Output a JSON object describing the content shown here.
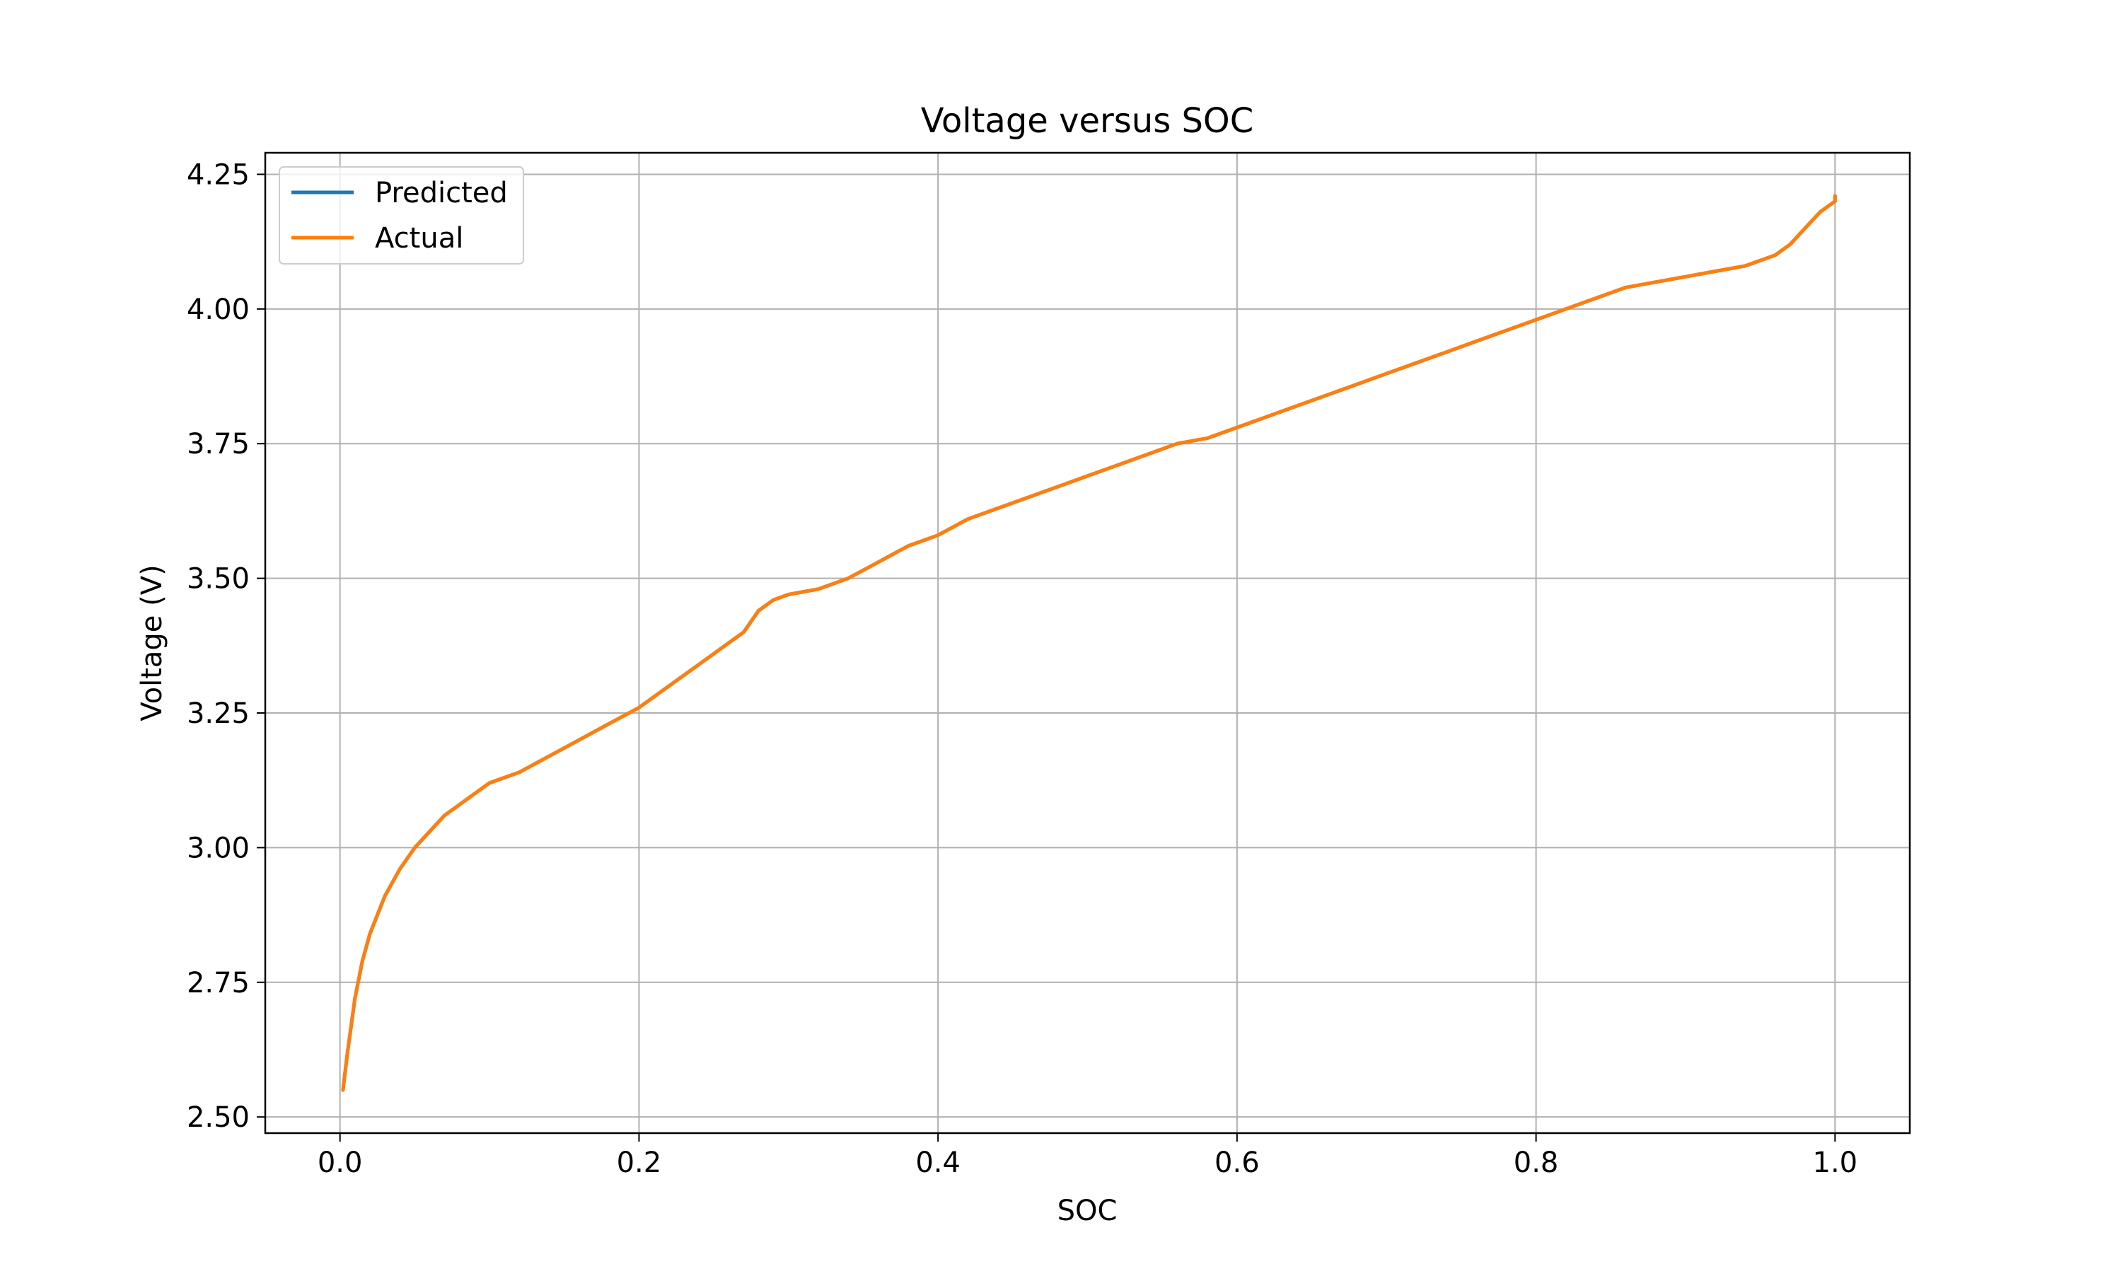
{
  "chart_data": {
    "type": "line",
    "title": "Voltage versus SOC",
    "xlabel": "SOC",
    "ylabel": "Voltage (V)",
    "xlim": [
      -0.05,
      1.05
    ],
    "ylim": [
      2.47,
      4.29
    ],
    "xticks": [
      0.0,
      0.2,
      0.4,
      0.6,
      0.8,
      1.0
    ],
    "xtick_labels": [
      "0.0",
      "0.2",
      "0.4",
      "0.6",
      "0.8",
      "1.0"
    ],
    "yticks": [
      2.5,
      2.75,
      3.0,
      3.25,
      3.5,
      3.75,
      4.0,
      4.25
    ],
    "ytick_labels": [
      "2.50",
      "2.75",
      "3.00",
      "3.25",
      "3.50",
      "3.75",
      "4.00",
      "4.25"
    ],
    "grid": true,
    "legend_position": "upper left",
    "series": [
      {
        "name": "Predicted",
        "color": "#1f77b4",
        "x": [
          0.002,
          0.005,
          0.01,
          0.015,
          0.02,
          0.03,
          0.04,
          0.05,
          0.06,
          0.07,
          0.08,
          0.09,
          0.1,
          0.11,
          0.12,
          0.14,
          0.16,
          0.18,
          0.2,
          0.22,
          0.24,
          0.26,
          0.27,
          0.28,
          0.29,
          0.3,
          0.32,
          0.34,
          0.36,
          0.38,
          0.4,
          0.42,
          0.44,
          0.46,
          0.48,
          0.5,
          0.52,
          0.54,
          0.56,
          0.58,
          0.6,
          0.62,
          0.64,
          0.66,
          0.68,
          0.7,
          0.72,
          0.74,
          0.76,
          0.78,
          0.8,
          0.82,
          0.84,
          0.86,
          0.88,
          0.9,
          0.92,
          0.94,
          0.96,
          0.97,
          0.98,
          0.99,
          1.0,
          1.0
        ],
        "y": [
          2.55,
          2.62,
          2.72,
          2.79,
          2.84,
          2.91,
          2.96,
          3.0,
          3.03,
          3.06,
          3.08,
          3.1,
          3.12,
          3.13,
          3.14,
          3.17,
          3.2,
          3.23,
          3.26,
          3.3,
          3.34,
          3.38,
          3.4,
          3.44,
          3.46,
          3.47,
          3.48,
          3.5,
          3.53,
          3.56,
          3.58,
          3.61,
          3.63,
          3.65,
          3.67,
          3.69,
          3.71,
          3.73,
          3.75,
          3.76,
          3.78,
          3.8,
          3.82,
          3.84,
          3.86,
          3.88,
          3.9,
          3.92,
          3.94,
          3.96,
          3.98,
          4.0,
          4.02,
          4.04,
          4.05,
          4.06,
          4.07,
          4.08,
          4.1,
          4.12,
          4.15,
          4.18,
          4.2,
          4.21
        ]
      },
      {
        "name": "Actual",
        "color": "#ff7f0e",
        "x": [
          0.002,
          0.005,
          0.01,
          0.015,
          0.02,
          0.03,
          0.04,
          0.05,
          0.06,
          0.07,
          0.08,
          0.09,
          0.1,
          0.11,
          0.12,
          0.14,
          0.16,
          0.18,
          0.2,
          0.22,
          0.24,
          0.26,
          0.27,
          0.28,
          0.29,
          0.3,
          0.32,
          0.34,
          0.36,
          0.38,
          0.4,
          0.42,
          0.44,
          0.46,
          0.48,
          0.5,
          0.52,
          0.54,
          0.56,
          0.58,
          0.6,
          0.62,
          0.64,
          0.66,
          0.68,
          0.7,
          0.72,
          0.74,
          0.76,
          0.78,
          0.8,
          0.82,
          0.84,
          0.86,
          0.88,
          0.9,
          0.92,
          0.94,
          0.96,
          0.97,
          0.98,
          0.99,
          1.0,
          1.0
        ],
        "y": [
          2.55,
          2.62,
          2.72,
          2.79,
          2.84,
          2.91,
          2.96,
          3.0,
          3.03,
          3.06,
          3.08,
          3.1,
          3.12,
          3.13,
          3.14,
          3.17,
          3.2,
          3.23,
          3.26,
          3.3,
          3.34,
          3.38,
          3.4,
          3.44,
          3.46,
          3.47,
          3.48,
          3.5,
          3.53,
          3.56,
          3.58,
          3.61,
          3.63,
          3.65,
          3.67,
          3.69,
          3.71,
          3.73,
          3.75,
          3.76,
          3.78,
          3.8,
          3.82,
          3.84,
          3.86,
          3.88,
          3.9,
          3.92,
          3.94,
          3.96,
          3.98,
          4.0,
          4.02,
          4.04,
          4.05,
          4.06,
          4.07,
          4.08,
          4.1,
          4.12,
          4.15,
          4.18,
          4.2,
          4.21
        ]
      }
    ]
  }
}
